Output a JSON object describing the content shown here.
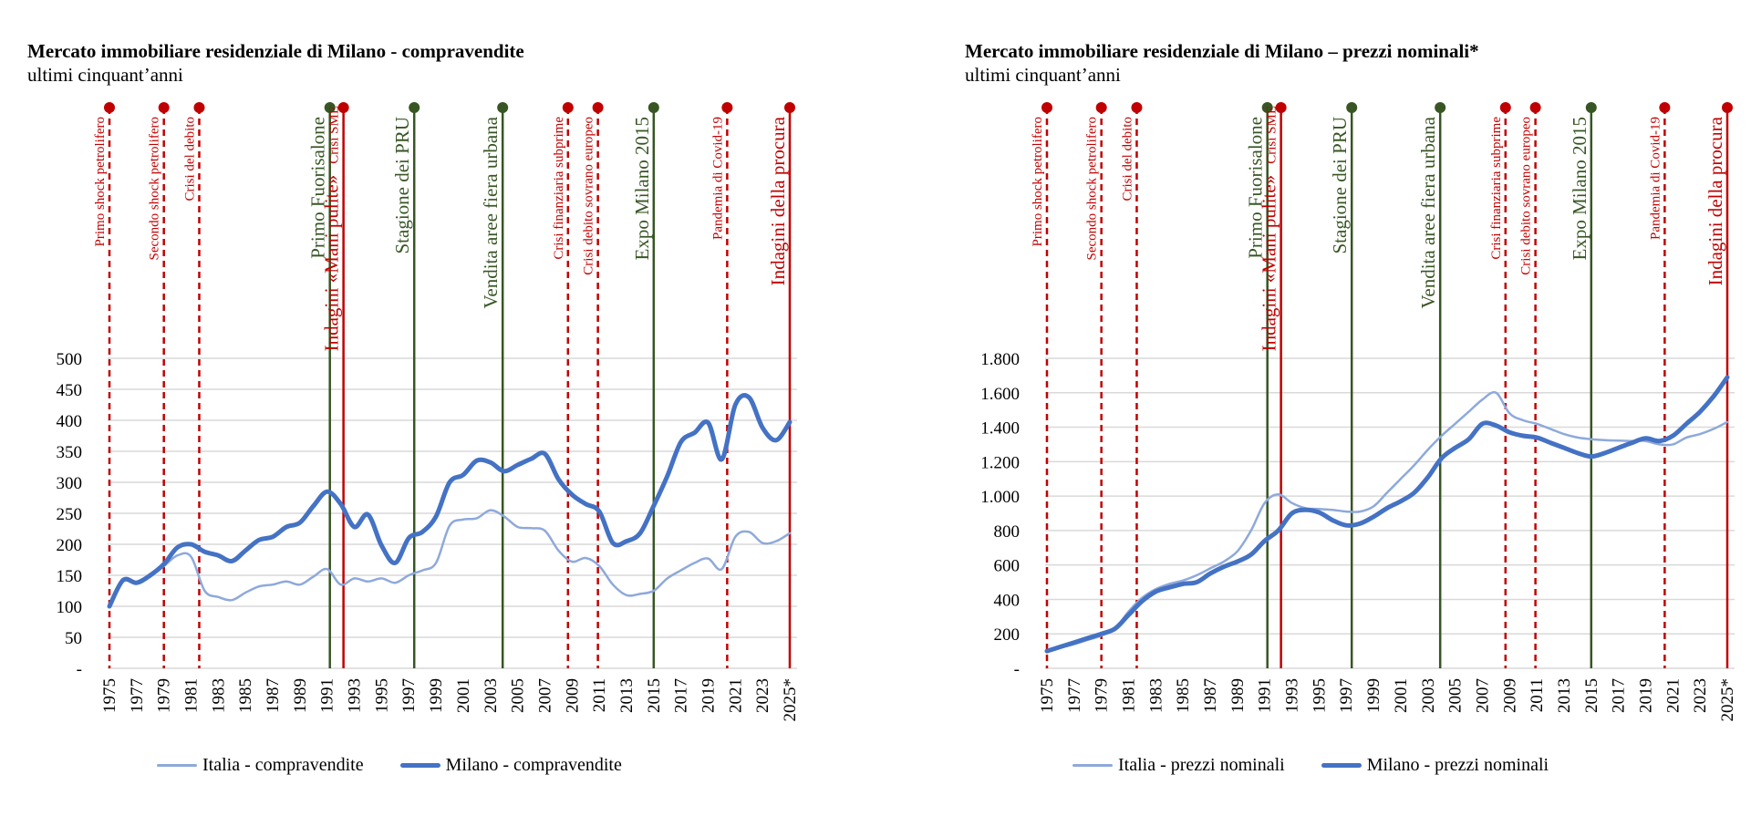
{
  "chart_data": [
    {
      "type": "line",
      "title": "Mercato immobiliare residenziale di Milano - compravendite",
      "subtitle": "ultimi cinquant’anni",
      "ylim": [
        0,
        500
      ],
      "y_ticks": [
        0,
        50,
        100,
        150,
        200,
        250,
        300,
        350,
        400,
        450,
        500
      ],
      "y_tick_labels": [
        "-",
        "50",
        "100",
        "150",
        "200",
        "250",
        "300",
        "350",
        "400",
        "450",
        "500"
      ],
      "x": [
        1975,
        1976,
        1977,
        1978,
        1979,
        1980,
        1981,
        1982,
        1983,
        1984,
        1985,
        1986,
        1987,
        1988,
        1989,
        1990,
        1991,
        1992,
        1993,
        1994,
        1995,
        1996,
        1997,
        1998,
        1999,
        2000,
        2001,
        2002,
        2003,
        2004,
        2005,
        2006,
        2007,
        2008,
        2009,
        2010,
        2011,
        2012,
        2013,
        2014,
        2015,
        2016,
        2017,
        2018,
        2019,
        2020,
        2021,
        2022,
        2023,
        2024,
        2025
      ],
      "x_tick_labels": [
        "1975",
        "1977",
        "1979",
        "1981",
        "1983",
        "1985",
        "1987",
        "1989",
        "1991",
        "1993",
        "1995",
        "1997",
        "1999",
        "2001",
        "2003",
        "2005",
        "2007",
        "2009",
        "2011",
        "2013",
        "2015",
        "2017",
        "2019",
        "2021",
        "2023",
        "2025*"
      ],
      "grid": true,
      "legend_position": "bottom",
      "series": [
        {
          "name": "Italia - compravendite",
          "color": "#8EA9DB",
          "width": 2.5,
          "values": [
            100,
            140,
            138,
            150,
            165,
            182,
            180,
            125,
            115,
            110,
            122,
            132,
            135,
            140,
            135,
            148,
            160,
            135,
            145,
            140,
            145,
            138,
            150,
            158,
            170,
            230,
            240,
            242,
            255,
            245,
            228,
            226,
            222,
            190,
            172,
            178,
            165,
            135,
            118,
            120,
            125,
            145,
            158,
            170,
            177,
            160,
            212,
            220,
            202,
            205,
            218
          ]
        },
        {
          "name": "Milano - compravendite",
          "color": "#4472C4",
          "width": 5,
          "values": [
            100,
            142,
            138,
            150,
            168,
            195,
            200,
            188,
            182,
            173,
            190,
            207,
            212,
            228,
            235,
            262,
            285,
            265,
            228,
            248,
            198,
            170,
            210,
            220,
            245,
            300,
            312,
            335,
            332,
            318,
            328,
            338,
            346,
            305,
            280,
            265,
            253,
            202,
            205,
            218,
            262,
            310,
            365,
            380,
            396,
            337,
            425,
            437,
            388,
            368,
            397
          ]
        }
      ],
      "events": [
        {
          "year": 1975,
          "label": "Primo shock petrolifero",
          "color": "#C00000",
          "style": "dashed",
          "size": 15
        },
        {
          "year": 1979,
          "label": "Secondo shock petrolifero",
          "color": "#C00000",
          "style": "dashed",
          "size": 15
        },
        {
          "year": 1981.6,
          "label": "Crisi del debito",
          "color": "#C00000",
          "style": "dashed",
          "size": 15
        },
        {
          "year": 1991.2,
          "label": "Primo Fuorisalone",
          "color": "#375623",
          "style": "solid",
          "size": 21
        },
        {
          "year": 1992.2,
          "label": "Indagini «Mani pulite»",
          "color": "#C00000",
          "style": "solid",
          "size": 21,
          "label2": "Crisi SME",
          "size2": 15
        },
        {
          "year": 1997.4,
          "label": "Stagione dei PRU",
          "color": "#375623",
          "style": "solid",
          "size": 21
        },
        {
          "year": 2003.9,
          "label": "Vendita aree fiera urbana",
          "color": "#375623",
          "style": "solid",
          "size": 21
        },
        {
          "year": 2008.7,
          "label": "Crisi finanziaria subprime",
          "color": "#C00000",
          "style": "dashed",
          "size": 15
        },
        {
          "year": 2010.9,
          "label": "Crisi debito sovrano europeo",
          "color": "#C00000",
          "style": "dashed",
          "size": 15
        },
        {
          "year": 2015,
          "label": "Expo Milano 2015",
          "color": "#375623",
          "style": "solid",
          "size": 21
        },
        {
          "year": 2020.4,
          "label": "Pandemia di Covid-19",
          "color": "#C00000",
          "style": "dashed",
          "size": 15
        },
        {
          "year": 2025,
          "label": "Indagini  della procura",
          "color": "#C00000",
          "style": "solid",
          "size": 21
        }
      ]
    },
    {
      "type": "line",
      "title": "Mercato immobiliare residenziale di Milano – prezzi nominali*",
      "subtitle": "ultimi cinquant’anni",
      "ylim": [
        0,
        1800
      ],
      "y_ticks": [
        0,
        200,
        400,
        600,
        800,
        1000,
        1200,
        1400,
        1600,
        1800
      ],
      "y_tick_labels": [
        "-",
        "200",
        "400",
        "600",
        "800",
        "1.000",
        "1.200",
        "1.400",
        "1.600",
        "1.800"
      ],
      "x": [
        1975,
        1976,
        1977,
        1978,
        1979,
        1980,
        1981,
        1982,
        1983,
        1984,
        1985,
        1986,
        1987,
        1988,
        1989,
        1990,
        1991,
        1992,
        1993,
        1994,
        1995,
        1996,
        1997,
        1998,
        1999,
        2000,
        2001,
        2002,
        2003,
        2004,
        2005,
        2006,
        2007,
        2008,
        2009,
        2010,
        2011,
        2012,
        2013,
        2014,
        2015,
        2016,
        2017,
        2018,
        2019,
        2020,
        2021,
        2022,
        2023,
        2024,
        2025
      ],
      "x_tick_labels": [
        "1975",
        "1977",
        "1979",
        "1981",
        "1983",
        "1985",
        "1987",
        "1989",
        "1991",
        "1993",
        "1995",
        "1997",
        "1999",
        "2001",
        "2003",
        "2005",
        "2007",
        "2009",
        "2011",
        "2013",
        "2015",
        "2017",
        "2019",
        "2021",
        "2023",
        "2025*"
      ],
      "grid": true,
      "legend_position": "bottom",
      "series": [
        {
          "name": "Italia - prezzi nominali",
          "color": "#8EA9DB",
          "width": 2.5,
          "values": [
            100,
            120,
            140,
            165,
            190,
            230,
            330,
            410,
            460,
            490,
            510,
            540,
            580,
            620,
            680,
            800,
            960,
            1010,
            960,
            930,
            925,
            920,
            910,
            910,
            940,
            1020,
            1100,
            1180,
            1270,
            1350,
            1420,
            1490,
            1560,
            1600,
            1480,
            1440,
            1420,
            1390,
            1360,
            1340,
            1330,
            1325,
            1322,
            1320,
            1320,
            1300,
            1300,
            1340,
            1360,
            1390,
            1430
          ]
        },
        {
          "name": "Milano - prezzi nominali",
          "color": "#4472C4",
          "width": 5,
          "values": [
            100,
            125,
            150,
            175,
            200,
            230,
            310,
            390,
            445,
            470,
            490,
            500,
            550,
            590,
            620,
            660,
            740,
            800,
            900,
            920,
            905,
            860,
            830,
            840,
            880,
            930,
            970,
            1020,
            1110,
            1220,
            1280,
            1330,
            1420,
            1410,
            1370,
            1350,
            1340,
            1310,
            1280,
            1250,
            1230,
            1250,
            1280,
            1310,
            1335,
            1320,
            1350,
            1420,
            1490,
            1580,
            1690
          ]
        }
      ],
      "events": [
        {
          "year": 1975,
          "label": "Primo shock petrolifero",
          "color": "#C00000",
          "style": "dashed",
          "size": 15
        },
        {
          "year": 1979,
          "label": "Secondo shock petrolifero",
          "color": "#C00000",
          "style": "dashed",
          "size": 15
        },
        {
          "year": 1981.6,
          "label": "Crisi del debito",
          "color": "#C00000",
          "style": "dashed",
          "size": 15
        },
        {
          "year": 1991.2,
          "label": "Primo Fuorisalone",
          "color": "#375623",
          "style": "solid",
          "size": 21
        },
        {
          "year": 1992.2,
          "label": "Indagini «Mani pulite»",
          "color": "#C00000",
          "style": "solid",
          "size": 21,
          "label2": "Crisi SME",
          "size2": 15
        },
        {
          "year": 1997.4,
          "label": "Stagione dei PRU",
          "color": "#375623",
          "style": "solid",
          "size": 21
        },
        {
          "year": 2003.9,
          "label": "Vendita aree fiera urbana",
          "color": "#375623",
          "style": "solid",
          "size": 21
        },
        {
          "year": 2008.7,
          "label": "Crisi finanziaria subprime",
          "color": "#C00000",
          "style": "dashed",
          "size": 15
        },
        {
          "year": 2010.9,
          "label": "Crisi debito sovrano europeo",
          "color": "#C00000",
          "style": "dashed",
          "size": 15
        },
        {
          "year": 2015,
          "label": "Expo Milano 2015",
          "color": "#375623",
          "style": "solid",
          "size": 21
        },
        {
          "year": 2020.4,
          "label": "Pandemia di Covid-19",
          "color": "#C00000",
          "style": "dashed",
          "size": 15
        },
        {
          "year": 2025,
          "label": "Indagini  della procura",
          "color": "#C00000",
          "style": "solid",
          "size": 21
        }
      ]
    }
  ]
}
